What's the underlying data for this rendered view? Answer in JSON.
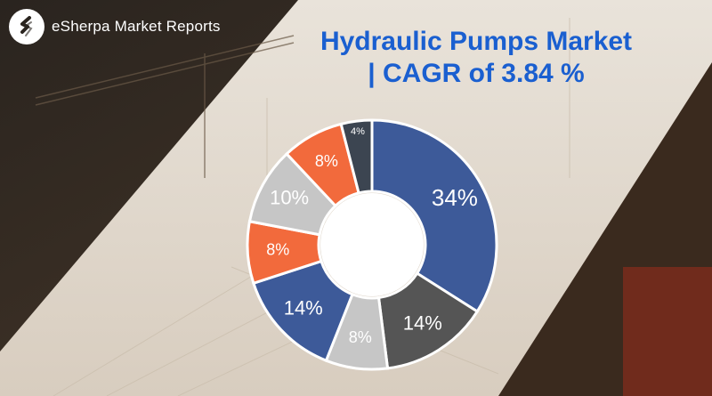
{
  "brand": {
    "name": "eSherpa Market Reports",
    "logo_icon": "esherpa-logo-icon"
  },
  "title_line1": "Hydraulic Pumps Market",
  "title_line2": "| CAGR of 3.84 %",
  "colors": {
    "title": "#1a5fd0",
    "navy": "#3d5a99",
    "charcoal": "#555555",
    "grey": "#c6c6c6",
    "orange": "#f26a3c",
    "slate": "#3c4551"
  },
  "chart_data": {
    "type": "pie",
    "variant": "donut",
    "title": "Hydraulic Pumps Market | CAGR of 3.84 %",
    "unit": "%",
    "slices": [
      {
        "label": "34%",
        "value": 34,
        "color": "#3d5a99"
      },
      {
        "label": "14%",
        "value": 14,
        "color": "#555555"
      },
      {
        "label": "8%",
        "value": 8,
        "color": "#c6c6c6"
      },
      {
        "label": "14%",
        "value": 14,
        "color": "#3d5a99"
      },
      {
        "label": "8%",
        "value": 8,
        "color": "#f26a3c"
      },
      {
        "label": "10%",
        "value": 10,
        "color": "#c6c6c6"
      },
      {
        "label": "8%",
        "value": 8,
        "color": "#f26a3c"
      },
      {
        "label": "4%",
        "value": 4,
        "color": "#3c4551"
      }
    ]
  }
}
